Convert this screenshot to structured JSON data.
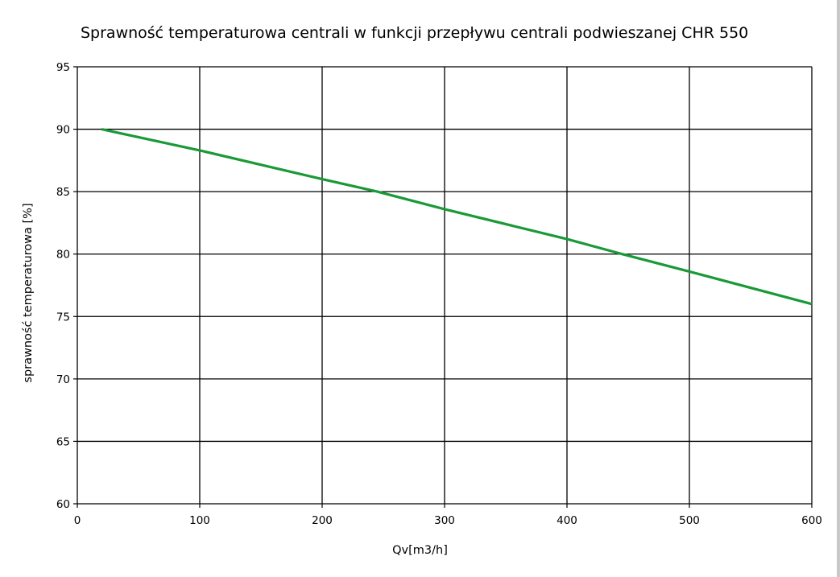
{
  "chart_data": {
    "type": "line",
    "title": "Sprawność temperaturowa centrali w funkcji przepływu centrali podwieszanej CHR 550",
    "xlabel": "Qv[m3/h]",
    "ylabel": "sprawność temperaturowa [%]",
    "xlim": [
      0,
      600
    ],
    "ylim": [
      60,
      95
    ],
    "x_ticks": [
      0,
      100,
      200,
      300,
      400,
      500,
      600
    ],
    "y_ticks": [
      60,
      65,
      70,
      75,
      80,
      85,
      90,
      95
    ],
    "grid": true,
    "legend": "none",
    "series": [
      {
        "color": "#1a9a37",
        "x": [
          20,
          100,
          200,
          245,
          300,
          400,
          445,
          500,
          600
        ],
        "y": [
          90,
          88.3,
          86,
          85,
          83.6,
          81.2,
          80,
          78.6,
          76
        ]
      }
    ]
  }
}
